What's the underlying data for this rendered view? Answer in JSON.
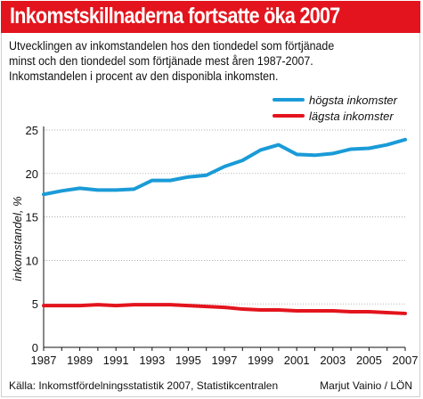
{
  "header": {
    "title": "Inkomstskillnaderna fortsatte öka 2007",
    "subtitle_lines": [
      "Utvecklingen av inkomstandelen hos den tiondedel som förtjänade",
      "minst och den tiondedel som förtjänade mest åren 1987-2007.",
      "Inkomstandelen i procent av den disponibla inkomsten."
    ]
  },
  "footer": {
    "source": "Källa: Inkomstfördelningsstatistik 2007, Statistikcentralen",
    "credit": "Marjut Vainio / LÖN"
  },
  "colors": {
    "title_bar": "#e3141d",
    "high_series": "#1a9bd7",
    "low_series": "#e3141d"
  },
  "chart_data": {
    "type": "line",
    "title": "Inkomstskillnaderna fortsatte öka 2007",
    "ylabel": "inkomstandel, %",
    "xlabel": "",
    "ylim": [
      0,
      25
    ],
    "xlim": [
      1987,
      2007
    ],
    "yticks": [
      0,
      5,
      10,
      15,
      20,
      25
    ],
    "xticks": [
      1987,
      1989,
      1991,
      1993,
      1995,
      1997,
      1999,
      2001,
      2003,
      2005,
      2007
    ],
    "grid": true,
    "legend_position": "top-right",
    "x": [
      1987,
      1988,
      1989,
      1990,
      1991,
      1992,
      1993,
      1994,
      1995,
      1996,
      1997,
      1998,
      1999,
      2000,
      2001,
      2002,
      2003,
      2004,
      2005,
      2006,
      2007
    ],
    "series": [
      {
        "name": "högsta inkomster",
        "color": "#1a9bd7",
        "values": [
          17.6,
          18.0,
          18.3,
          18.1,
          18.1,
          18.2,
          19.2,
          19.2,
          19.6,
          19.8,
          20.8,
          21.5,
          22.7,
          23.3,
          22.2,
          22.1,
          22.3,
          22.8,
          22.9,
          23.3,
          23.9
        ]
      },
      {
        "name": "lägsta inkomster",
        "color": "#e3141d",
        "values": [
          4.8,
          4.8,
          4.8,
          4.9,
          4.8,
          4.9,
          4.9,
          4.9,
          4.8,
          4.7,
          4.6,
          4.4,
          4.3,
          4.3,
          4.2,
          4.2,
          4.2,
          4.1,
          4.1,
          4.0,
          3.9
        ]
      }
    ]
  }
}
